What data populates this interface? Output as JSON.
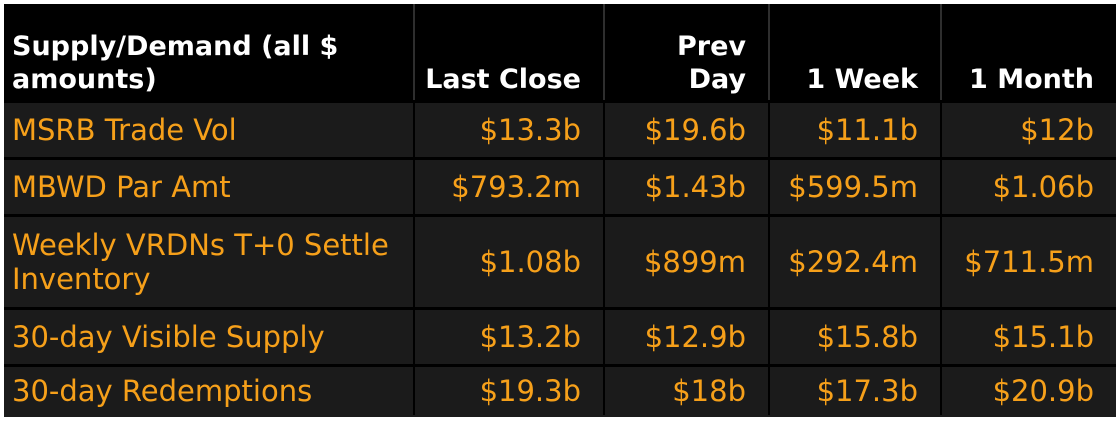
{
  "table": {
    "headers": [
      "Supply/Demand (all $ amounts)",
      "Last Close",
      "Prev Day",
      "1 Week",
      "1 Month"
    ],
    "rows": [
      [
        "MSRB Trade Vol",
        "$13.3b",
        "$19.6b",
        "$11.1b",
        "$12b"
      ],
      [
        "MBWD Par Amt",
        "$793.2m",
        "$1.43b",
        "$599.5m",
        "$1.06b"
      ],
      [
        "Weekly VRDNs T+0 Settle Inventory",
        "$1.08b",
        "$899m",
        "$292.4m",
        "$711.5m"
      ],
      [
        "30-day Visible Supply",
        "$13.2b",
        "$12.9b",
        "$15.8b",
        "$15.1b"
      ],
      [
        "30-day Redemptions",
        "$19.3b",
        "$18b",
        "$17.3b",
        "$20.9b"
      ]
    ]
  },
  "colors": {
    "header_background": "#000000",
    "header_text": "#ffffff",
    "body_background": "#1b1b1b",
    "body_text": "#f6a01a"
  }
}
